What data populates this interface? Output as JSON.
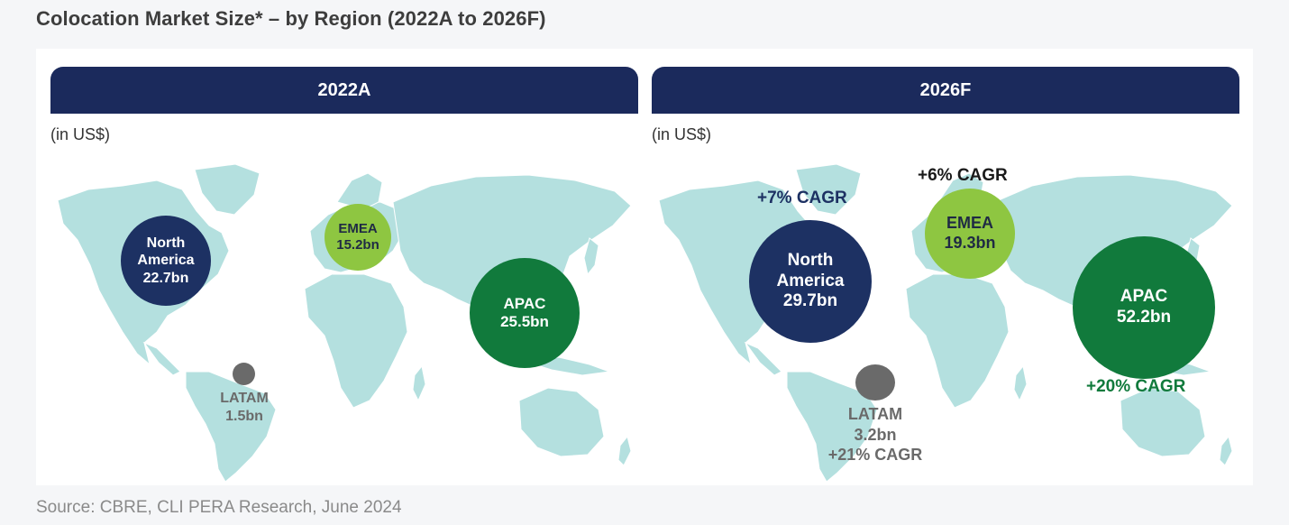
{
  "title": "Colocation Market Size* – by Region (2022A to 2026F)",
  "source": "Source: CBRE, CLI PERA Research, June 2024",
  "colors": {
    "header": "#1b2a5c",
    "north_america": "#1d3163",
    "emea": "#8ec641",
    "apac": "#117a3c",
    "latam": "#6a6a6a",
    "land": "#b4e0df"
  },
  "panels": [
    {
      "header": "2022A",
      "unit": "(in US$)",
      "regions": {
        "north_america": {
          "line1": "North",
          "line2": "America",
          "value": "22.7bn"
        },
        "emea": {
          "name": "EMEA",
          "value": "15.2bn"
        },
        "apac": {
          "name": "APAC",
          "value": "25.5bn"
        },
        "latam": {
          "name": "LATAM",
          "value": "1.5bn"
        }
      }
    },
    {
      "header": "2026F",
      "unit": "(in US$)",
      "regions": {
        "north_america": {
          "line1": "North",
          "line2": "America",
          "value": "29.7bn",
          "cagr": "+7% CAGR"
        },
        "emea": {
          "name": "EMEA",
          "value": "19.3bn",
          "cagr": "+6% CAGR"
        },
        "apac": {
          "name": "APAC",
          "value": "52.2bn",
          "cagr": "+20% CAGR"
        },
        "latam": {
          "name": "LATAM",
          "value": "3.2bn",
          "cagr": "+21% CAGR"
        }
      }
    }
  ]
}
